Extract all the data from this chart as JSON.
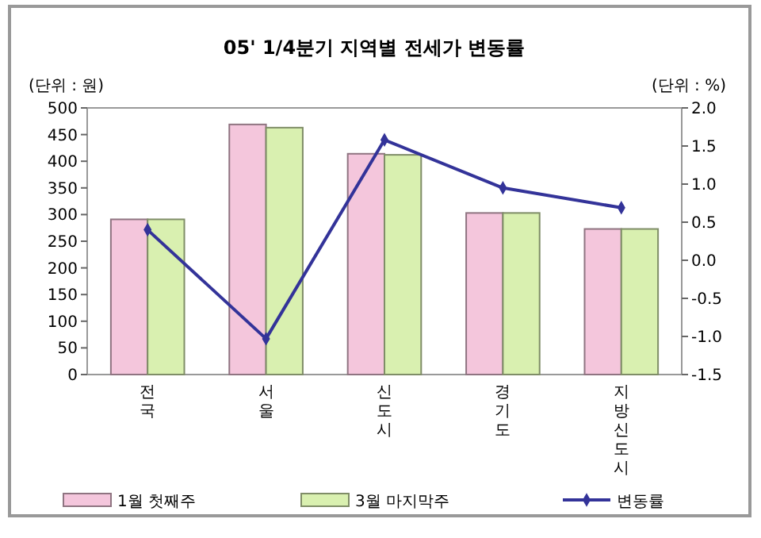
{
  "chart_data": {
    "type": "bar",
    "title": "05' 1/4분기 지역별 전세가 변동률",
    "ylabel": "(단위 : 원)",
    "y2label": "(단위 : %)",
    "categories": [
      "전국",
      "서울",
      "신도시",
      "경기도",
      "지방 신도시"
    ],
    "series": [
      {
        "name": "1월 첫째주",
        "color": "#f4c6dc",
        "values": [
          291,
          469,
          414,
          303,
          273
        ]
      },
      {
        "name": "3월 마지막주",
        "color": "#d9f0b0",
        "values": [
          291,
          463,
          412,
          303,
          273
        ]
      },
      {
        "name": "변동률",
        "type": "line",
        "axis": "y2",
        "color": "#333399",
        "marker": "diamond",
        "values": [
          0.4,
          -1.03,
          1.58,
          0.95,
          0.69
        ]
      }
    ],
    "ylim": [
      0,
      500
    ],
    "yticks": [
      0,
      50,
      100,
      150,
      200,
      250,
      300,
      350,
      400,
      450,
      500
    ],
    "y2lim": [
      -1.5,
      2.0
    ],
    "y2ticks": [
      {
        "value": -1.5,
        "label": "-1.5"
      },
      {
        "value": -1.0,
        "label": "-1.0"
      },
      {
        "value": -0.5,
        "label": "-0.5"
      },
      {
        "value": 0,
        "label": "0.0"
      },
      {
        "value": 0.5,
        "label": "0.5"
      },
      {
        "value": 1.0,
        "label": "1.0"
      },
      {
        "value": 1.5,
        "label": "1.5"
      },
      {
        "value": 2.0,
        "label": "2.0"
      }
    ],
    "legend": "bottom"
  }
}
